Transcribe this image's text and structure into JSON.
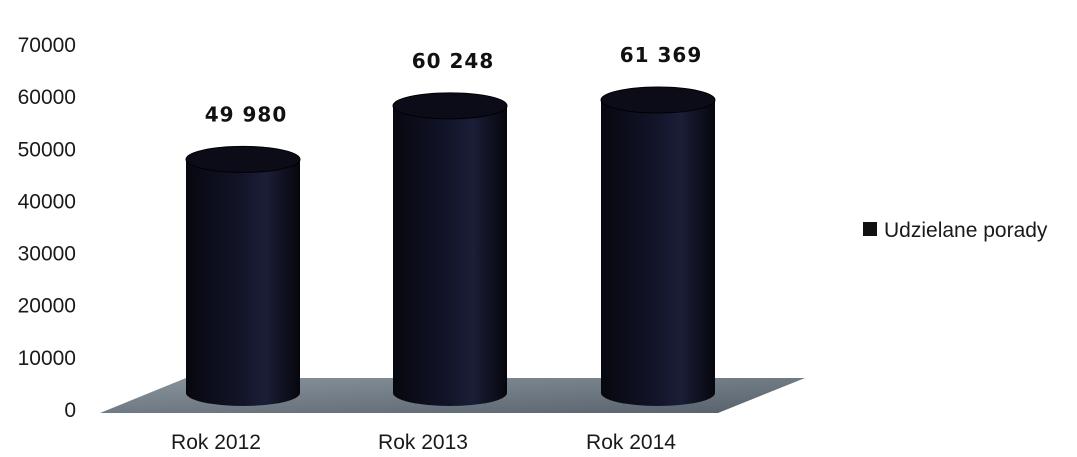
{
  "chart_data": {
    "type": "bar",
    "style": "3d-cylinder",
    "categories": [
      "Rok 2012",
      "Rok 2013",
      "Rok 2014"
    ],
    "series": [
      {
        "name": "Udzielane porady",
        "values": [
          49980,
          60248,
          61369
        ],
        "value_labels": [
          "49 980",
          "60 248",
          "61 369"
        ]
      }
    ],
    "ylim": [
      0,
      70000
    ],
    "yticks": [
      "0",
      "10000",
      "20000",
      "30000",
      "40000",
      "50000",
      "60000",
      "70000"
    ],
    "grid": false,
    "legend_position": "right",
    "colors": {
      "bar": "#0c0c18",
      "bar_highlight": "#1c1f3a",
      "floor": "#6e7a85"
    }
  }
}
